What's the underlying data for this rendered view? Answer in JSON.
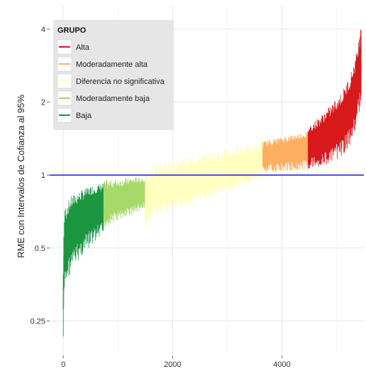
{
  "chart_data": {
    "type": "line",
    "title": "",
    "xlabel": "",
    "ylabel": "RME con Intervalos de Cofianza al 95%",
    "xlim": [
      -250,
      5500
    ],
    "ylim": [
      0.18,
      5.0
    ],
    "yscale": "log",
    "x_ticks": [
      0,
      2000,
      4000
    ],
    "x_tick_labels": [
      "0",
      "2000",
      "4000"
    ],
    "y_ticks": [
      0.25,
      0.5,
      1,
      2,
      4
    ],
    "y_tick_labels": [
      "0.25",
      "0.5",
      "1",
      "2",
      "4"
    ],
    "grid": true,
    "reference_line": {
      "y": 1,
      "color": "#1a1adf"
    },
    "estimate_color": "#b5b5b5",
    "legend": {
      "title": "GRUPO",
      "placement": "top-left",
      "entries": [
        {
          "label": "Alta",
          "color": "#d7191c"
        },
        {
          "label": "Moderadamente alta",
          "color": "#fdae61"
        },
        {
          "label": "Diferencia no significativa",
          "color": "#ffffbf"
        },
        {
          "label": "Moderadamente baja",
          "color": "#a6d96a"
        },
        {
          "label": "Baja",
          "color": "#1a9641"
        }
      ]
    },
    "series": [
      {
        "name": "Baja",
        "color": "#1a9641",
        "x": [
          0,
          10,
          30,
          80,
          150,
          300,
          500,
          740
        ],
        "estimate": [
          0.28,
          0.45,
          0.52,
          0.58,
          0.62,
          0.68,
          0.74,
          0.78
        ],
        "lower": [
          0.2,
          0.29,
          0.34,
          0.37,
          0.4,
          0.45,
          0.5,
          0.55
        ],
        "upper": [
          0.42,
          0.66,
          0.74,
          0.78,
          0.82,
          0.86,
          0.9,
          0.93
        ]
      },
      {
        "name": "Moderadamente baja",
        "color": "#a6d96a",
        "x": [
          740,
          900,
          1100,
          1300,
          1500
        ],
        "estimate": [
          0.78,
          0.8,
          0.82,
          0.85,
          0.87
        ],
        "lower": [
          0.6,
          0.63,
          0.66,
          0.69,
          0.71
        ],
        "upper": [
          0.95,
          0.96,
          0.97,
          0.98,
          0.99
        ]
      },
      {
        "name": "Diferencia no significativa",
        "color": "#ffffbf",
        "x": [
          1500,
          1700,
          2000,
          2400,
          2800,
          3200,
          3600,
          3650
        ],
        "estimate": [
          0.76,
          0.88,
          0.91,
          0.96,
          1.01,
          1.06,
          1.12,
          1.18
        ],
        "lower": [
          0.6,
          0.67,
          0.71,
          0.76,
          0.82,
          0.88,
          0.95,
          1.0
        ],
        "upper": [
          1.02,
          1.13,
          1.16,
          1.21,
          1.26,
          1.31,
          1.36,
          1.55
        ]
      },
      {
        "name": "Moderadamente alta",
        "color": "#fdae61",
        "x": [
          3650,
          3900,
          4200,
          4480
        ],
        "estimate": [
          1.2,
          1.24,
          1.28,
          1.32
        ],
        "lower": [
          1.02,
          1.03,
          1.04,
          1.05
        ],
        "upper": [
          1.38,
          1.42,
          1.47,
          1.52
        ]
      },
      {
        "name": "Alta",
        "color": "#d7191c",
        "x": [
          4480,
          4700,
          4900,
          5100,
          5250,
          5350,
          5420,
          5450
        ],
        "estimate": [
          1.35,
          1.42,
          1.52,
          1.7,
          1.95,
          2.3,
          2.8,
          3.3
        ],
        "lower": [
          1.06,
          1.08,
          1.12,
          1.2,
          1.32,
          1.5,
          1.8,
          2.1
        ],
        "upper": [
          1.6,
          1.75,
          1.95,
          2.2,
          2.6,
          3.1,
          3.8,
          4.6
        ]
      }
    ]
  }
}
